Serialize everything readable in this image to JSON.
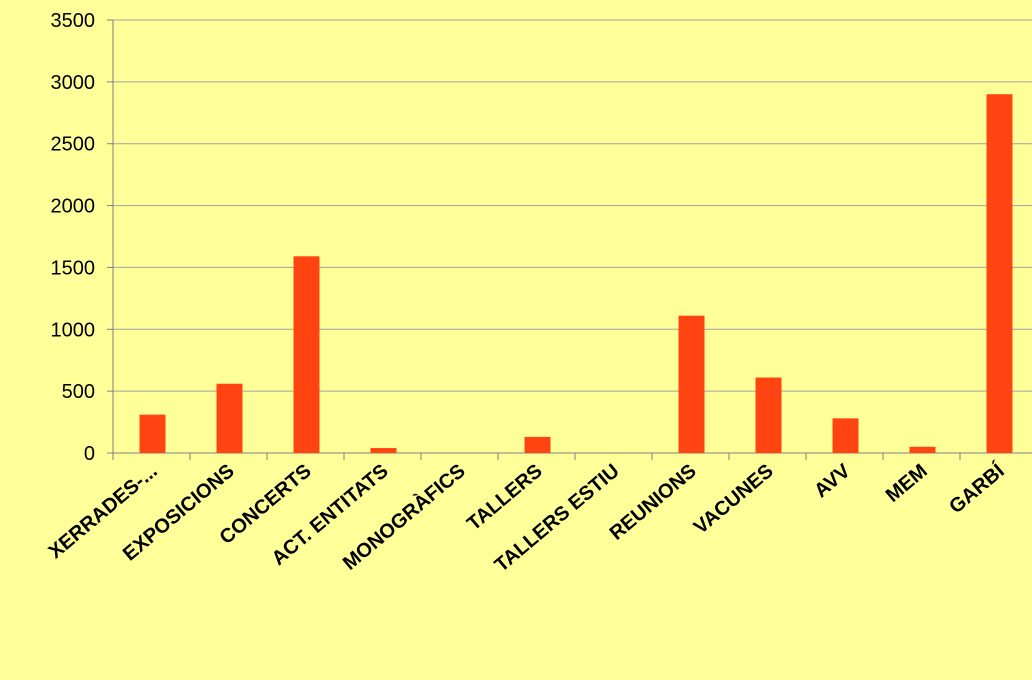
{
  "chart_data": {
    "type": "bar",
    "title": "",
    "xlabel": "",
    "ylabel": "",
    "categories": [
      "XERRADES-...",
      "EXPOSICIONS",
      "CONCERTS",
      "ACT. ENTITATS",
      "MONOGRÀFICS",
      "TALLERS",
      "TALLERS ESTIU",
      "REUNIONS",
      "VACUNES",
      "AVV",
      "MEM",
      "GARBÍ"
    ],
    "values": [
      310,
      560,
      1590,
      40,
      0,
      130,
      0,
      1110,
      610,
      280,
      50,
      2900
    ],
    "ylim": [
      0,
      3500
    ],
    "yticks": [
      "0",
      "500",
      "1000",
      "1500",
      "2000",
      "2500",
      "3000",
      "3500"
    ],
    "grid": true,
    "legend": "none",
    "colors": {
      "background": "#ffff99",
      "bar": "#ff4411",
      "gridline": "#a0a0a0",
      "axis": "#808080",
      "text": "#000000"
    }
  }
}
